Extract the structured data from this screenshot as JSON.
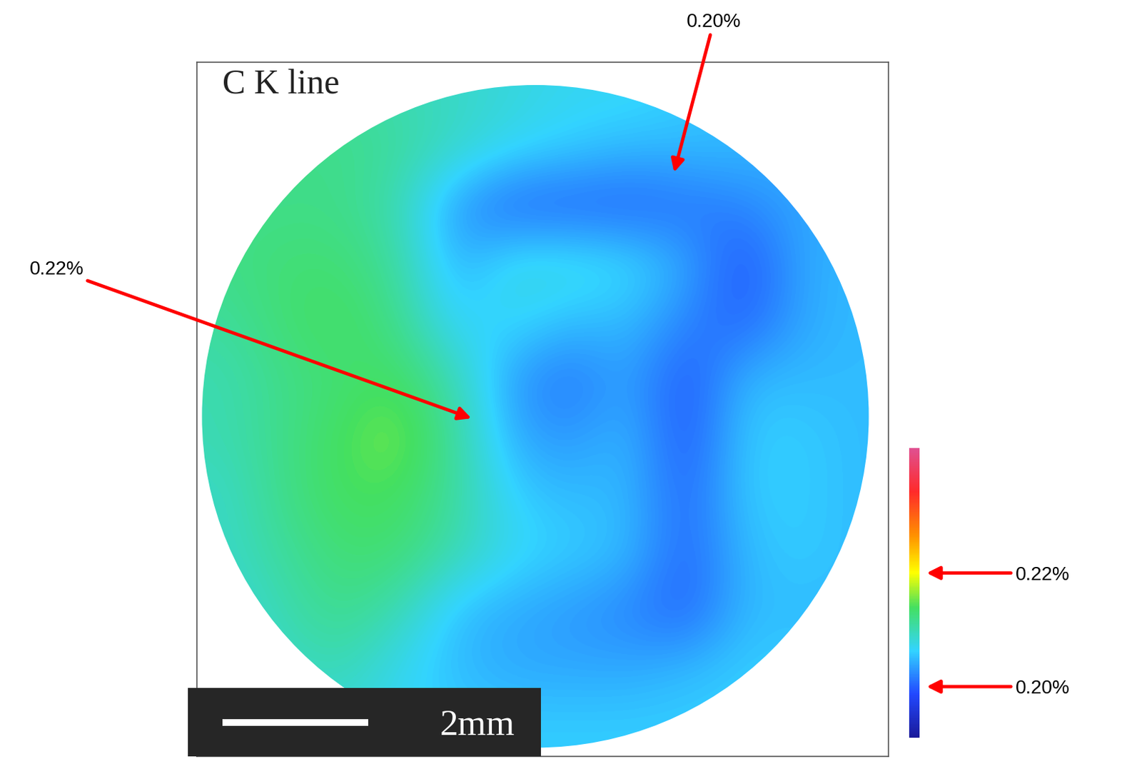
{
  "chart_data": {
    "type": "heatmap",
    "title": "C K line",
    "xlim": [
      0,
      9.5
    ],
    "ylim": [
      0,
      9.6
    ],
    "tick_labels": false,
    "cells": [
      [
        0.21,
        0.211,
        0.211,
        0.21,
        0.209,
        0.208,
        0.207,
        0.207,
        0.206,
        0.205,
        0.204,
        0.204
      ],
      [
        0.211,
        0.212,
        0.212,
        0.211,
        0.209,
        0.207,
        0.206,
        0.205,
        0.205,
        0.205,
        0.204,
        0.204
      ],
      [
        0.212,
        0.212,
        0.212,
        0.21,
        0.203,
        0.2,
        0.2,
        0.2,
        0.201,
        0.202,
        0.204,
        0.204
      ],
      [
        0.212,
        0.213,
        0.213,
        0.211,
        0.204,
        0.208,
        0.208,
        0.207,
        0.204,
        0.199,
        0.204,
        0.205
      ],
      [
        0.211,
        0.213,
        0.214,
        0.212,
        0.206,
        0.207,
        0.205,
        0.205,
        0.202,
        0.2,
        0.204,
        0.205
      ],
      [
        0.21,
        0.212,
        0.213,
        0.214,
        0.21,
        0.203,
        0.201,
        0.204,
        0.199,
        0.205,
        0.205,
        0.205
      ],
      [
        0.21,
        0.212,
        0.214,
        0.216,
        0.211,
        0.204,
        0.203,
        0.205,
        0.199,
        0.206,
        0.206,
        0.205
      ],
      [
        0.209,
        0.212,
        0.214,
        0.214,
        0.211,
        0.206,
        0.205,
        0.205,
        0.2,
        0.206,
        0.206,
        0.205
      ],
      [
        0.209,
        0.211,
        0.213,
        0.213,
        0.21,
        0.207,
        0.206,
        0.205,
        0.2,
        0.205,
        0.206,
        0.205
      ],
      [
        0.208,
        0.21,
        0.212,
        0.21,
        0.205,
        0.204,
        0.203,
        0.202,
        0.2,
        0.205,
        0.205,
        0.205
      ],
      [
        0.208,
        0.209,
        0.21,
        0.207,
        0.205,
        0.204,
        0.204,
        0.204,
        0.205,
        0.206,
        0.206,
        0.205
      ],
      [
        0.208,
        0.208,
        0.208,
        0.207,
        0.206,
        0.206,
        0.206,
        0.206,
        0.206,
        0.206,
        0.206,
        0.206
      ]
    ],
    "colorbar": {
      "range": [
        0.191,
        0.242
      ],
      "ticks": [
        {
          "value": 0.2,
          "label": "0.20%"
        },
        {
          "value": 0.22,
          "label": "0.22%"
        }
      ]
    },
    "annotations": [
      {
        "text": "0.20%"
      },
      {
        "text": "0.22%"
      }
    ],
    "scale_bar": {
      "label": "2mm",
      "length": 2
    }
  }
}
